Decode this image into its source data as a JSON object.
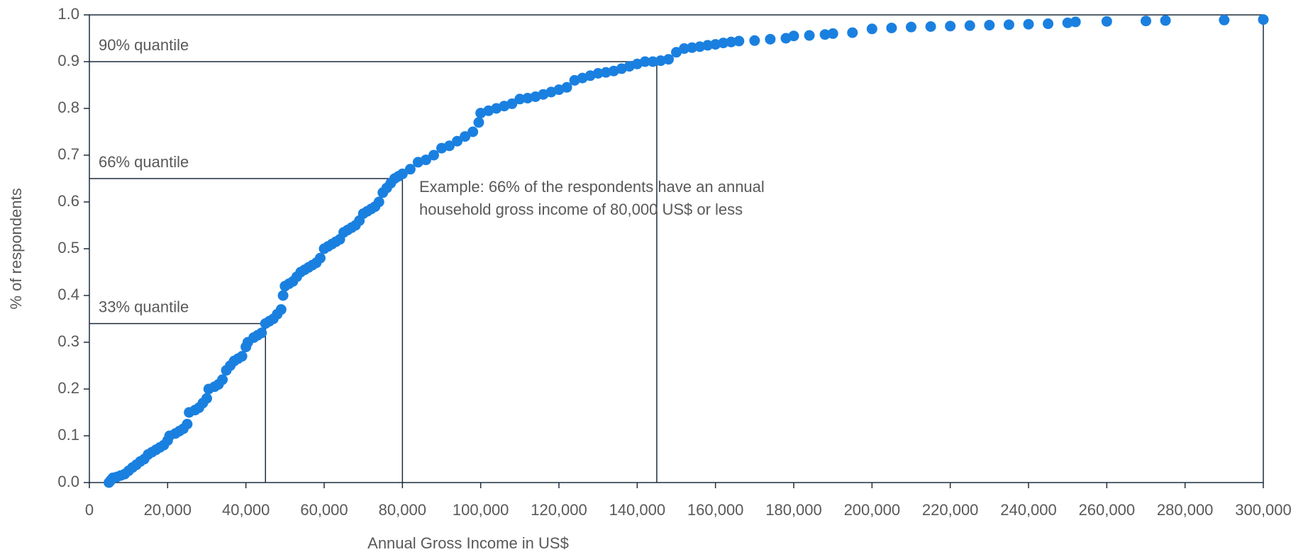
{
  "chart_data": {
    "type": "scatter",
    "xlabel": "Annual Gross Income in US$",
    "ylabel": "% of respondents",
    "xlim": [
      0,
      300000
    ],
    "ylim": [
      0,
      1
    ],
    "xticks": [
      0,
      {
        "value": 20000,
        "label": "20,000"
      },
      {
        "value": 40000,
        "label": "40,000"
      },
      {
        "value": 60000,
        "label": "60,000"
      },
      {
        "value": 80000,
        "label": "80,000"
      },
      {
        "value": 100000,
        "label": "100,000"
      },
      {
        "value": 120000,
        "label": "120,000"
      },
      {
        "value": 140000,
        "label": "140,000"
      },
      {
        "value": 160000,
        "label": "160,000"
      },
      {
        "value": 180000,
        "label": "180,000"
      },
      {
        "value": 200000,
        "label": "200,000"
      },
      {
        "value": 220000,
        "label": "220,000"
      },
      {
        "value": 240000,
        "label": "240,000"
      },
      {
        "value": 260000,
        "label": "260,000"
      },
      {
        "value": 280000,
        "label": "280,000"
      },
      {
        "value": 300000,
        "label": "300,000"
      }
    ],
    "yticks": [
      {
        "value": 0,
        "label": "0.0"
      },
      0.1,
      0.2,
      0.3,
      0.4,
      0.5,
      0.6,
      0.7,
      0.8,
      0.9,
      {
        "value": 1,
        "label": "1.0"
      }
    ],
    "x": [
      5000,
      5500,
      6000,
      7000,
      8000,
      9000,
      10000,
      11000,
      12000,
      13000,
      14000,
      15000,
      16000,
      17000,
      18000,
      19000,
      20000,
      20500,
      22000,
      23000,
      24000,
      25000,
      25500,
      27000,
      28000,
      29000,
      30000,
      30500,
      32000,
      33000,
      34000,
      35000,
      36000,
      37000,
      38000,
      39000,
      40000,
      40500,
      42000,
      43000,
      44000,
      45000,
      46000,
      47000,
      48000,
      49000,
      49500,
      50000,
      51000,
      52000,
      53000,
      54000,
      55000,
      56000,
      57000,
      58000,
      59000,
      60000,
      61000,
      62000,
      63000,
      64000,
      65000,
      66000,
      67000,
      68000,
      69000,
      70000,
      71000,
      72000,
      73000,
      74000,
      75000,
      76000,
      77000,
      78000,
      79000,
      80000,
      82000,
      84000,
      86000,
      88000,
      90000,
      92000,
      94000,
      96000,
      98000,
      99500,
      100000,
      102000,
      104000,
      106000,
      108000,
      110000,
      112000,
      114000,
      116000,
      118000,
      120000,
      122000,
      124000,
      126000,
      128000,
      130000,
      132000,
      134000,
      136000,
      138000,
      140000,
      142000,
      144000,
      146000,
      148000,
      150000,
      152000,
      154000,
      156000,
      158000,
      160000,
      162000,
      164000,
      166000,
      170000,
      174000,
      178000,
      180000,
      184000,
      188000,
      190000,
      195000,
      200000,
      205000,
      210000,
      215000,
      220000,
      225000,
      230000,
      235000,
      240000,
      245000,
      250000,
      252000,
      260000,
      270000,
      275000,
      290000,
      300000
    ],
    "series": [
      {
        "color": "#1a80e0",
        "values": [
          0,
          0.005,
          0.01,
          0.012,
          0.015,
          0.018,
          0.025,
          0.032,
          0.038,
          0.045,
          0.05,
          0.06,
          0.065,
          0.07,
          0.075,
          0.08,
          0.09,
          0.1,
          0.105,
          0.11,
          0.115,
          0.125,
          0.15,
          0.155,
          0.16,
          0.17,
          0.18,
          0.2,
          0.205,
          0.21,
          0.22,
          0.24,
          0.25,
          0.26,
          0.265,
          0.27,
          0.29,
          0.3,
          0.31,
          0.315,
          0.32,
          0.34,
          0.345,
          0.35,
          0.36,
          0.37,
          0.4,
          0.42,
          0.425,
          0.43,
          0.44,
          0.45,
          0.455,
          0.46,
          0.465,
          0.47,
          0.48,
          0.5,
          0.505,
          0.51,
          0.515,
          0.52,
          0.535,
          0.54,
          0.545,
          0.55,
          0.56,
          0.575,
          0.58,
          0.585,
          0.59,
          0.6,
          0.62,
          0.63,
          0.64,
          0.65,
          0.655,
          0.66,
          0.67,
          0.685,
          0.69,
          0.7,
          0.715,
          0.72,
          0.73,
          0.74,
          0.75,
          0.77,
          0.79,
          0.795,
          0.8,
          0.805,
          0.81,
          0.82,
          0.822,
          0.825,
          0.83,
          0.835,
          0.84,
          0.845,
          0.86,
          0.865,
          0.87,
          0.875,
          0.877,
          0.88,
          0.885,
          0.89,
          0.895,
          0.9,
          0.9,
          0.902,
          0.905,
          0.92,
          0.928,
          0.93,
          0.932,
          0.935,
          0.937,
          0.94,
          0.942,
          0.944,
          0.945,
          0.948,
          0.95,
          0.955,
          0.956,
          0.958,
          0.96,
          0.962,
          0.97,
          0.972,
          0.974,
          0.975,
          0.976,
          0.977,
          0.978,
          0.979,
          0.98,
          0.981,
          0.983,
          0.985,
          0.986,
          0.987,
          0.988,
          0.989,
          0.99
        ]
      }
    ],
    "annotations": [
      {
        "label": "90% quantile",
        "x": 145000,
        "y": 0.9
      },
      {
        "label": "66% quantile",
        "x": 80000,
        "y": 0.65
      },
      {
        "label": "33% quantile",
        "x": 45000,
        "y": 0.34
      }
    ],
    "note": [
      "Example: 66% of the respondents have an annual",
      "household gross income of 80,000 US$ or less"
    ]
  }
}
